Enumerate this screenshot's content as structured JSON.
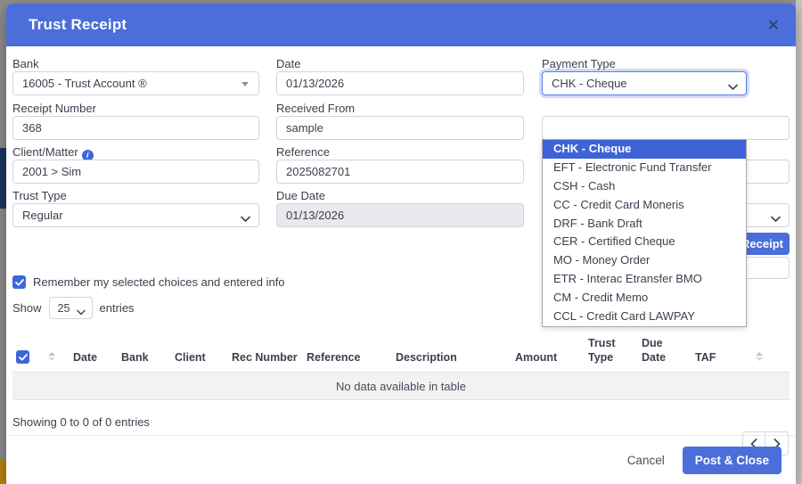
{
  "modal": {
    "title": "Trust Receipt",
    "close_icon": "✕"
  },
  "form": {
    "bank": {
      "label": "Bank",
      "value": "16005 - Trust Account ®"
    },
    "date": {
      "label": "Date",
      "value": "01/13/2026"
    },
    "payment_type": {
      "label": "Payment Type",
      "value": "CHK - Cheque"
    },
    "receipt_number": {
      "label": "Receipt Number",
      "value": "368"
    },
    "received_from": {
      "label": "Received From",
      "value": "sample"
    },
    "client_matter": {
      "label": "Client/Matter",
      "value": "2001 > Sim",
      "info_icon": "i"
    },
    "reference": {
      "label": "Reference",
      "value": "2025082701"
    },
    "trust_type": {
      "label": "Trust Type",
      "value": "Regular"
    },
    "due_date": {
      "label": "Due Date",
      "value": "01/13/2026"
    },
    "remember_checkbox_label": "Remember my selected choices and entered info",
    "partial_receipt_button_label": "Receipt"
  },
  "payment_dropdown": {
    "selected_index": 0,
    "options": [
      "CHK - Cheque",
      "EFT - Electronic Fund Transfer",
      "CSH - Cash",
      "CC - Credit Card Moneris",
      "DRF - Bank Draft",
      "CER - Certified Cheque",
      "MO - Money Order",
      "ETR - Interac Etransfer BMO",
      "CM - Credit Memo",
      "CCL - Credit Card LAWPAY"
    ]
  },
  "table": {
    "show_label": "Show",
    "page_size": "25",
    "entries_label": "entries",
    "columns": [
      "Date",
      "Bank",
      "Client",
      "Rec Number",
      "Reference",
      "Description",
      "Amount",
      "Trust Type",
      "Due Date",
      "TAF"
    ],
    "empty_text": "No data available in table",
    "summary": "Showing 0 to 0 of 0 entries"
  },
  "footer": {
    "cancel_label": "Cancel",
    "post_close_label": "Post & Close"
  },
  "colors": {
    "header_blue": "#4b6edb",
    "option_highlight": "#3d63d6",
    "checkbox_blue": "#3e66d9",
    "disabled_field": "#e9e9ed",
    "empty_row_bg": "#f2f2f2"
  }
}
